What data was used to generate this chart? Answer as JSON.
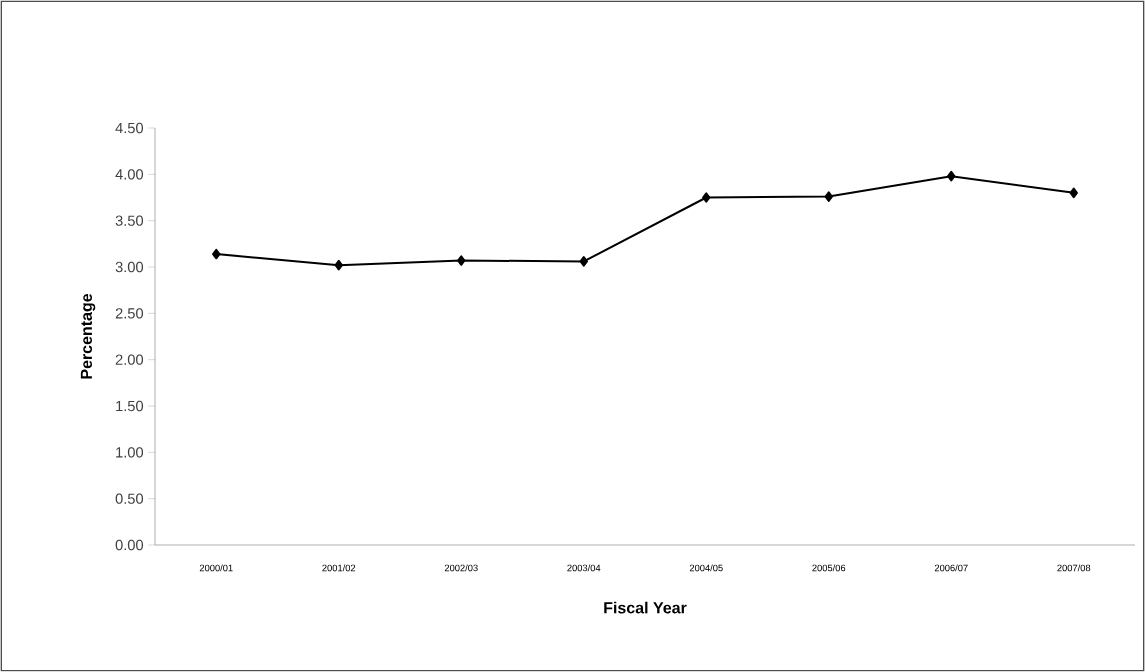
{
  "chart_data": {
    "type": "line",
    "xlabel": "Fiscal Year",
    "ylabel": "Percentage",
    "categories": [
      "2000/01",
      "2001/02",
      "2002/03",
      "2003/04",
      "2004/05",
      "2005/06",
      "2006/07",
      "2007/08"
    ],
    "series": [
      {
        "color": "#000000",
        "values": [
          3.14,
          3.02,
          3.07,
          3.06,
          3.75,
          3.76,
          3.98,
          3.8
        ]
      }
    ],
    "ylim": [
      0,
      4.5
    ],
    "yticks": [
      {
        "value": 0,
        "label": "0.00"
      },
      {
        "value": 0.5,
        "label": "0.50"
      },
      {
        "value": 1,
        "label": "1.00"
      },
      {
        "value": 1.5,
        "label": "1.50"
      },
      {
        "value": 2,
        "label": "2.00"
      },
      {
        "value": 2.5,
        "label": "2.50"
      },
      {
        "value": 3,
        "label": "3.00"
      },
      {
        "value": 3.5,
        "label": "3.50"
      },
      {
        "value": 4,
        "label": "4.00"
      },
      {
        "value": 4.5,
        "label": "4.50"
      }
    ],
    "grid": false,
    "legend": false,
    "marker": "diamond",
    "line_style": "solid"
  }
}
